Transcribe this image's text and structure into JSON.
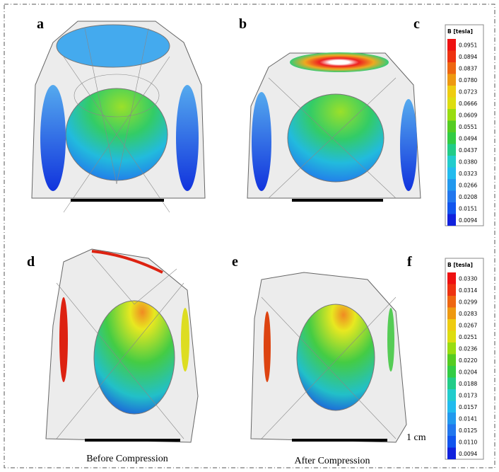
{
  "panels": {
    "labels": [
      "a",
      "b",
      "c",
      "d",
      "e",
      "f"
    ]
  },
  "colorbars": [
    {
      "title": "B [tesla]",
      "labels": [
        "0.0951",
        "0.0894",
        "0.0837",
        "0.0780",
        "0.0723",
        "0.0666",
        "0.0609",
        "0.0551",
        "0.0494",
        "0.0437",
        "0.0380",
        "0.0323",
        "0.0266",
        "0.0208",
        "0.0151",
        "0.0094"
      ]
    },
    {
      "title": "B [tesla]",
      "labels": [
        "0.0330",
        "0.0314",
        "0.0299",
        "0.0283",
        "0.0267",
        "0.0251",
        "0.0236",
        "0.0220",
        "0.0204",
        "0.0188",
        "0.0173",
        "0.0157",
        "0.0141",
        "0.0125",
        "0.0110",
        "0.0094"
      ]
    }
  ],
  "captions": {
    "before": "Before Compression",
    "after": "After Compression",
    "scale": "1 cm"
  }
}
